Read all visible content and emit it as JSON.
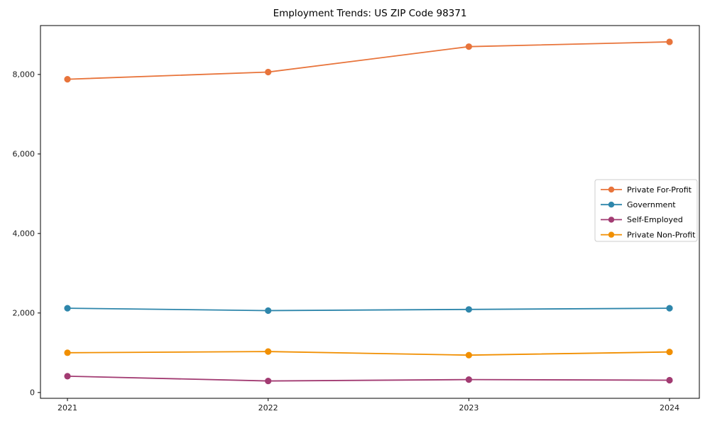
{
  "chart_data": {
    "type": "line",
    "title": "Employment Trends: US ZIP Code 98371",
    "xlabel": "",
    "ylabel": "",
    "categories": [
      "2021",
      "2022",
      "2023",
      "2024"
    ],
    "y_ticks": [
      0,
      2000,
      4000,
      6000,
      8000
    ],
    "y_tick_labels": [
      "0",
      "2,000",
      "4,000",
      "6,000",
      "8,000"
    ],
    "ylim": [
      -146,
      9230
    ],
    "grid": false,
    "legend_position": "center-right",
    "series": [
      {
        "name": "Private For-Profit",
        "color": "#E8743B",
        "values": [
          7880,
          8060,
          8700,
          8820
        ]
      },
      {
        "name": "Government",
        "color": "#2E86AB",
        "values": [
          2120,
          2060,
          2090,
          2120
        ]
      },
      {
        "name": "Self-Employed",
        "color": "#A23B72",
        "values": [
          410,
          290,
          325,
          310
        ]
      },
      {
        "name": "Private Non-Profit",
        "color": "#F18F01",
        "values": [
          1000,
          1030,
          940,
          1020
        ]
      }
    ]
  },
  "style_colors": {
    "spine": "#000000",
    "tick_text": "#1a1a1a",
    "legend_border": "#cccccc",
    "background": "#ffffff"
  }
}
